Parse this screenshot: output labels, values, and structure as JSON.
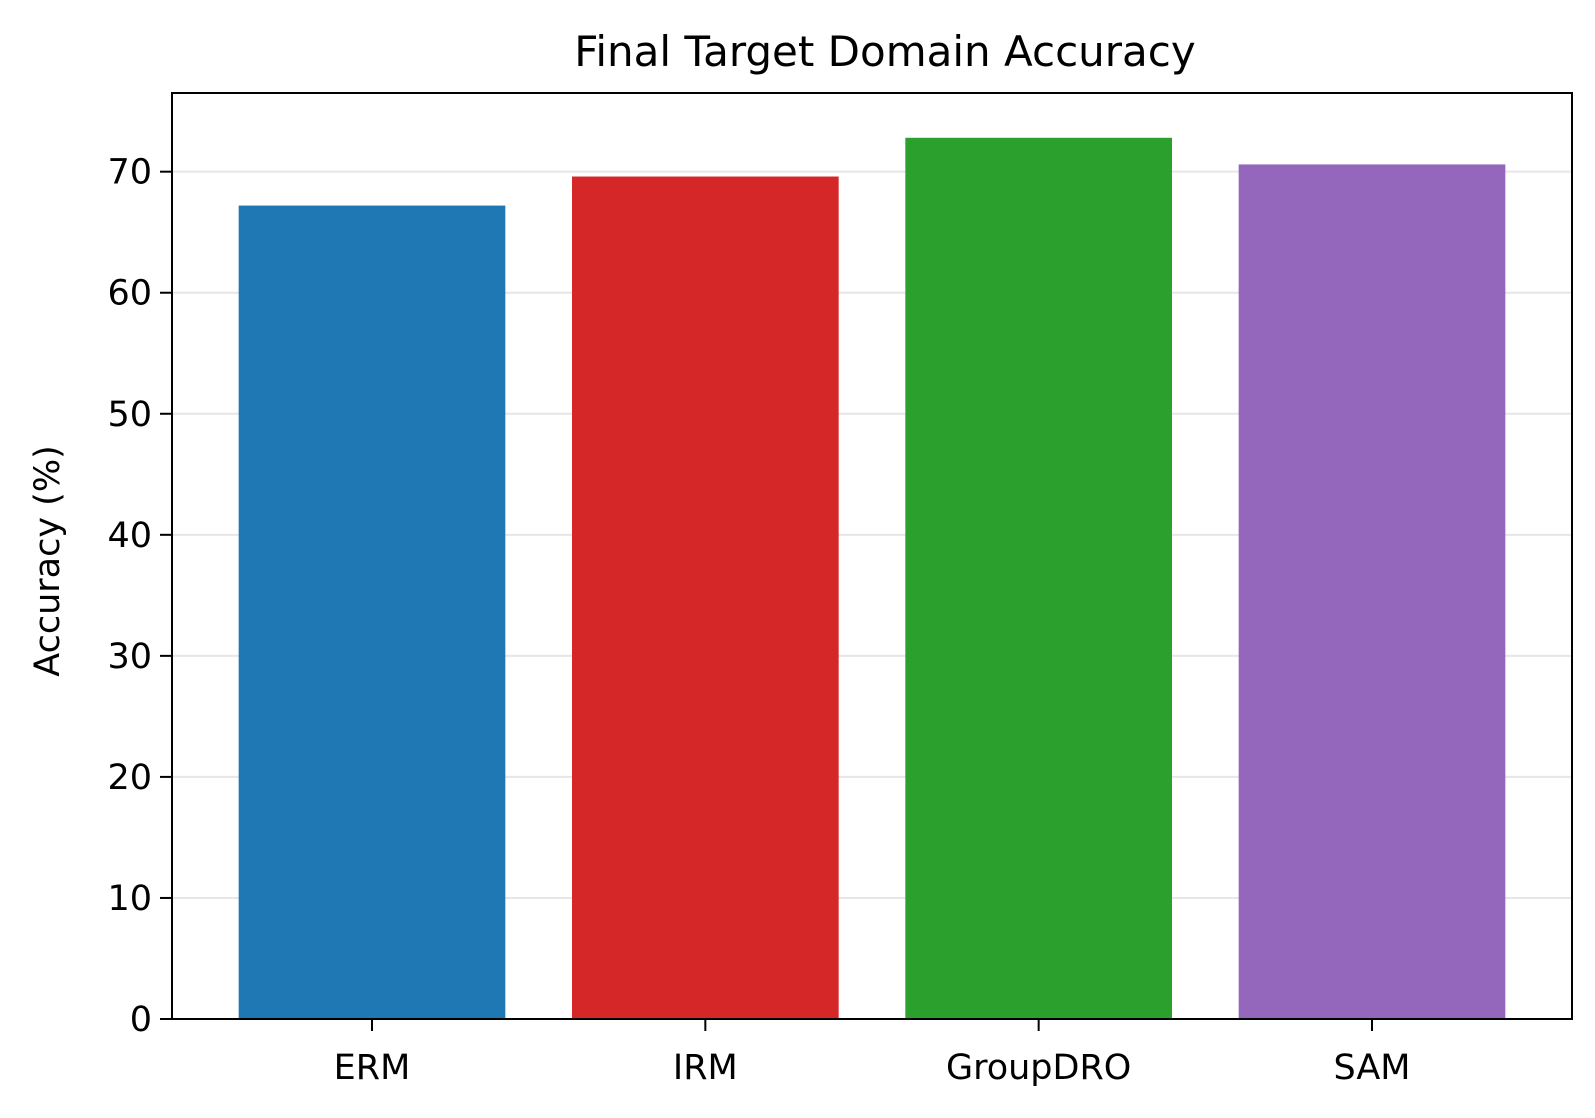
{
  "chart_data": {
    "type": "bar",
    "title": "Final Target Domain Accuracy",
    "xlabel": "",
    "ylabel": "Accuracy (%)",
    "categories": [
      "ERM",
      "IRM",
      "GroupDRO",
      "SAM"
    ],
    "values": [
      67.2,
      69.6,
      72.8,
      70.6
    ],
    "colors": [
      "#1f77b4",
      "#d62728",
      "#2ca02c",
      "#9467bd"
    ],
    "ylim": [
      0,
      76.5
    ],
    "yticks": [
      0,
      10,
      20,
      30,
      40,
      50,
      60,
      70
    ],
    "grid": "horizontal"
  }
}
